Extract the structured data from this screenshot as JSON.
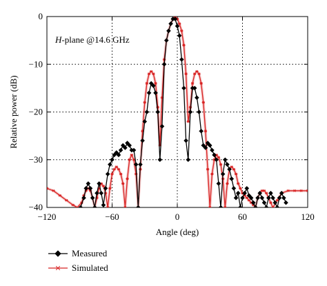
{
  "chart_data": {
    "type": "line",
    "annotation": {
      "italic": "H",
      "rest": "-plane @14.6 GHz"
    },
    "xlabel": "Angle (deg)",
    "ylabel": "Relative power (dB)",
    "xlim": [
      -120,
      120
    ],
    "ylim": [
      -40,
      0
    ],
    "xticks": [
      -120,
      -60,
      0,
      60,
      120
    ],
    "yticks": [
      0,
      -10,
      -20,
      -30,
      -40
    ],
    "grid": "dotted",
    "legend_position": "bottom-left",
    "series": [
      {
        "name": "Measured",
        "color": "#000000",
        "marker": "diamond",
        "x": [
          -89,
          -86,
          -84,
          -82,
          -80,
          -78,
          -76,
          -74,
          -72,
          -70,
          -68,
          -66,
          -64,
          -62,
          -60,
          -58,
          -56,
          -54,
          -52,
          -50,
          -48,
          -46,
          -44,
          -42,
          -40,
          -38,
          -36,
          -34,
          -32,
          -30,
          -28,
          -26,
          -24,
          -22,
          -20,
          -18,
          -16,
          -14,
          -12,
          -10,
          -8,
          -6,
          -4,
          -2,
          0,
          2,
          4,
          6,
          8,
          10,
          12,
          14,
          16,
          18,
          20,
          22,
          24,
          26,
          28,
          30,
          32,
          34,
          36,
          38,
          40,
          42,
          44,
          46,
          48,
          50,
          52,
          54,
          56,
          58,
          60,
          62,
          64,
          66,
          68,
          70,
          72,
          74,
          76,
          78,
          80,
          82,
          84,
          86,
          88,
          90,
          92,
          94,
          96,
          98,
          100
        ],
        "y": [
          -40,
          -38,
          -36,
          -35,
          -36,
          -38,
          -40,
          -37,
          -35,
          -37,
          -39.5,
          -36,
          -33,
          -31,
          -30,
          -29,
          -28.5,
          -29,
          -28,
          -27,
          -27.5,
          -26.5,
          -27,
          -28,
          -28,
          -31,
          -40,
          -31,
          -26,
          -22,
          -20,
          -16,
          -14,
          -14.5,
          -16,
          -20,
          -30,
          -23,
          -10,
          -5,
          -3,
          -1.5,
          -0.5,
          -0.5,
          -2,
          -4,
          -9,
          -15,
          -26,
          -30,
          -20,
          -15,
          -15,
          -17,
          -20,
          -24,
          -27,
          -27.5,
          -26.5,
          -27,
          -28,
          -29,
          -30,
          -35,
          -40,
          -33,
          -30,
          -31,
          -32,
          -34,
          -36,
          -38,
          -37,
          -40,
          -38,
          -37,
          -36,
          -37.5,
          -38,
          -39,
          -40,
          -38,
          -37,
          -38,
          -39,
          -40,
          -38,
          -37,
          -38,
          -39,
          -40,
          -38,
          -37,
          -38,
          -39
        ]
      },
      {
        "name": "Simulated",
        "color": "#d82020",
        "marker": "asterisk",
        "x": [
          -120,
          -114,
          -108,
          -102,
          -96,
          -92,
          -88,
          -86,
          -84,
          -82,
          -80,
          -78,
          -76,
          -74,
          -72,
          -70,
          -68,
          -66,
          -64,
          -62,
          -60,
          -58,
          -56,
          -54,
          -52,
          -50,
          -48,
          -46,
          -44,
          -42,
          -40,
          -38,
          -36,
          -34,
          -32,
          -30,
          -28,
          -26,
          -24,
          -22,
          -20,
          -18,
          -16,
          -14,
          -12,
          -10,
          -8,
          -6,
          -4,
          -2,
          0,
          2,
          4,
          6,
          8,
          10,
          12,
          14,
          16,
          18,
          20,
          22,
          24,
          26,
          28,
          30,
          32,
          34,
          36,
          38,
          40,
          42,
          44,
          46,
          48,
          50,
          52,
          54,
          56,
          58,
          60,
          62,
          64,
          66,
          68,
          70,
          72,
          74,
          76,
          78,
          80,
          82,
          84,
          86,
          88,
          92,
          96,
          102,
          108,
          114,
          120
        ],
        "y": [
          -36,
          -36.5,
          -37.5,
          -38.5,
          -39.5,
          -40,
          -39,
          -37.5,
          -36.5,
          -36,
          -36.5,
          -38,
          -40,
          -38,
          -36,
          -35,
          -35.5,
          -37,
          -40,
          -36,
          -33,
          -32,
          -31.5,
          -32,
          -33,
          -35,
          -40,
          -34,
          -30,
          -29,
          -30,
          -33,
          -40,
          -32,
          -24,
          -18,
          -14,
          -12,
          -11.5,
          -12,
          -14,
          -19,
          -27,
          -17,
          -9,
          -5,
          -3,
          -1.5,
          -0.5,
          0,
          -0.5,
          -1.5,
          -3,
          -6,
          -12,
          -22,
          -19,
          -14,
          -12,
          -11.5,
          -12,
          -14,
          -18,
          -24,
          -32,
          -40,
          -33,
          -30,
          -29,
          -29.5,
          -31,
          -34,
          -40,
          -35,
          -32,
          -31.5,
          -32,
          -33,
          -35,
          -36,
          -37,
          -37.5,
          -38,
          -38.5,
          -39,
          -39.5,
          -40,
          -38,
          -37,
          -36.5,
          -36.5,
          -37,
          -38,
          -39,
          -40,
          -38.5,
          -37,
          -36.5,
          -36.5,
          -36.5,
          -36.5
        ]
      }
    ]
  }
}
